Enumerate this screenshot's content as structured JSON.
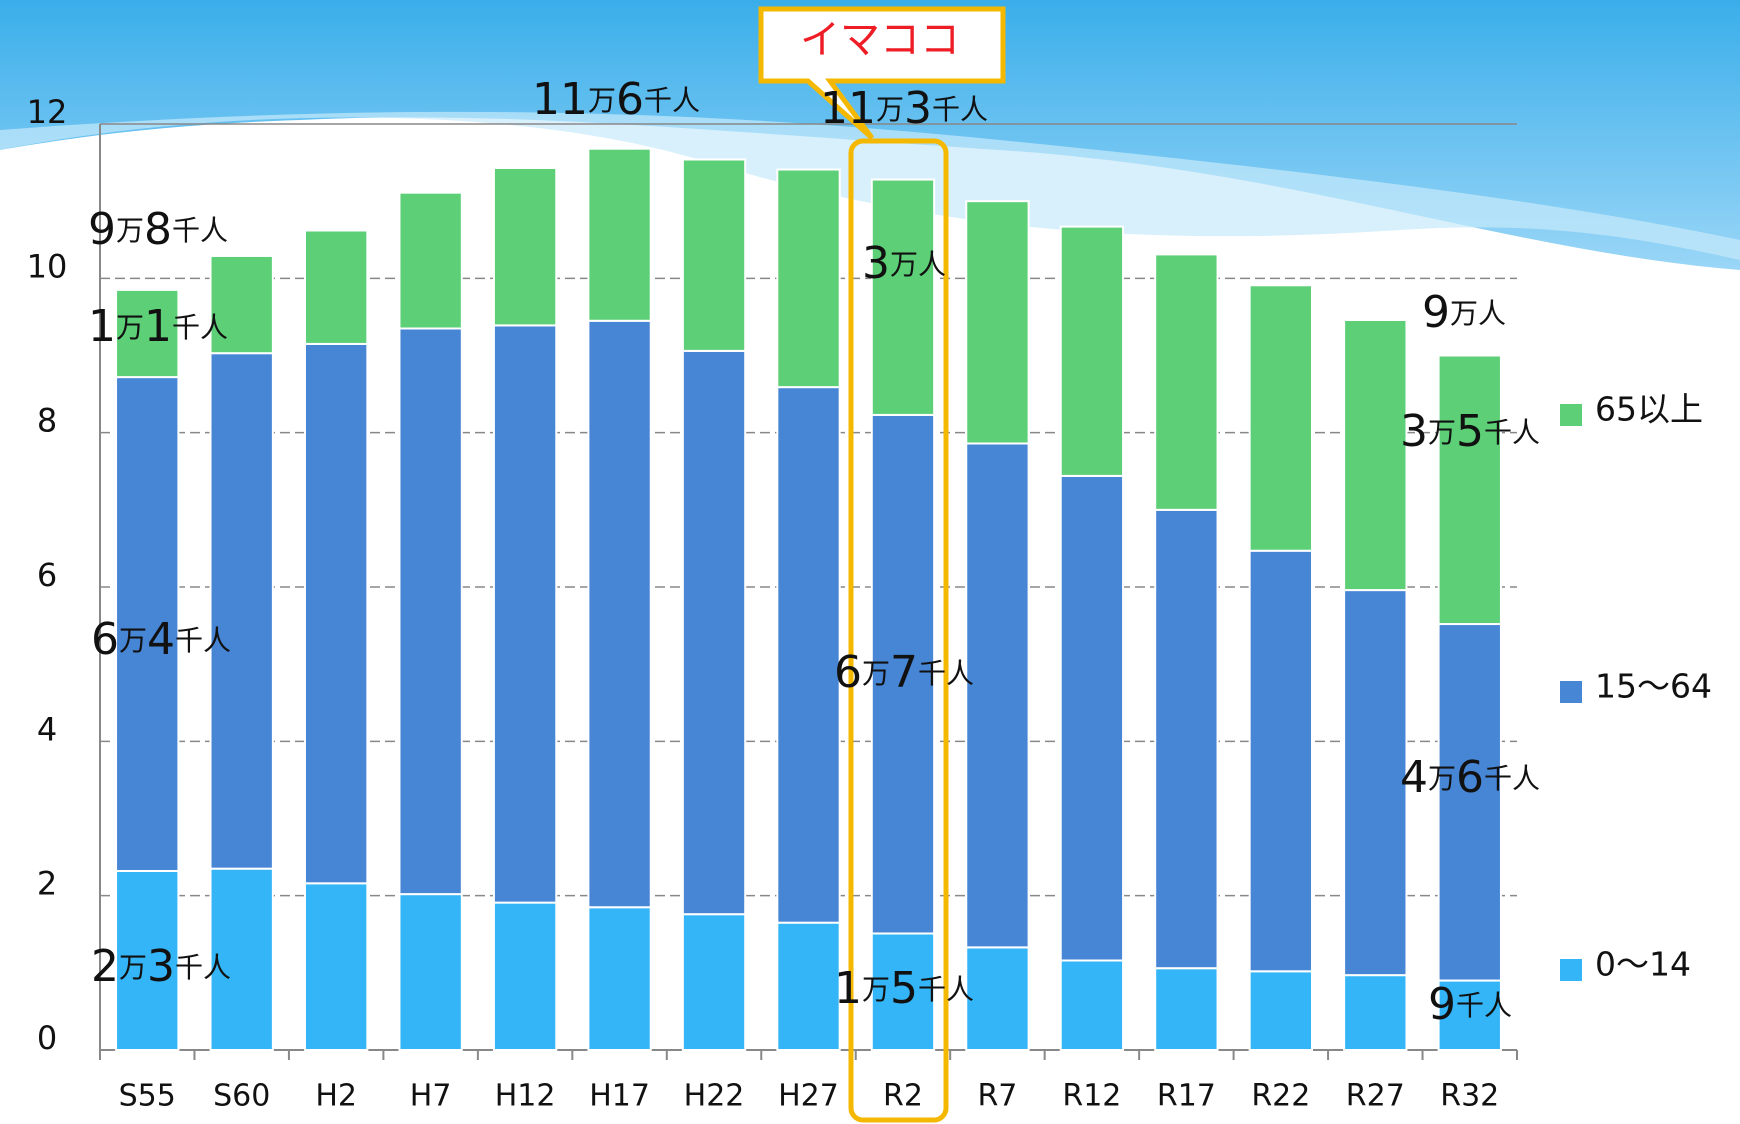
{
  "chart_data": {
    "type": "bar",
    "stacked": true,
    "categories": [
      "S55",
      "S60",
      "H2",
      "H7",
      "H12",
      "H17",
      "H22",
      "H27",
      "R2",
      "R7",
      "R12",
      "R17",
      "R22",
      "R27",
      "R32"
    ],
    "series": [
      {
        "name": "0〜14",
        "color": "#33b5f7",
        "values": [
          2.32,
          2.35,
          2.16,
          2.02,
          1.91,
          1.85,
          1.76,
          1.65,
          1.51,
          1.33,
          1.16,
          1.06,
          1.02,
          0.97,
          0.9
        ]
      },
      {
        "name": "15〜64",
        "color": "#4785d5",
        "values": [
          6.4,
          6.68,
          6.99,
          7.33,
          7.48,
          7.6,
          7.3,
          6.94,
          6.72,
          6.53,
          6.28,
          5.94,
          5.45,
          4.99,
          4.62
        ]
      },
      {
        "name": "65以上",
        "color": "#5ccf77",
        "values": [
          1.13,
          1.26,
          1.47,
          1.76,
          2.04,
          2.23,
          2.48,
          2.82,
          3.05,
          3.14,
          3.23,
          3.31,
          3.44,
          3.5,
          3.48
        ]
      }
    ],
    "ylim": [
      0,
      12
    ],
    "yticks": [
      0,
      2,
      4,
      6,
      8,
      10,
      12
    ],
    "grid": true,
    "legend": "right",
    "annotations": [
      "11万6千人",
      "11万3千人",
      "9万8千人",
      "1万1千人",
      "6万4千人",
      "2万3千人",
      "3万人",
      "6万7千人",
      "1万5千人",
      "9万人",
      "3万5千人",
      "4万6千人",
      "9千人"
    ],
    "callout": "イマココ"
  }
}
